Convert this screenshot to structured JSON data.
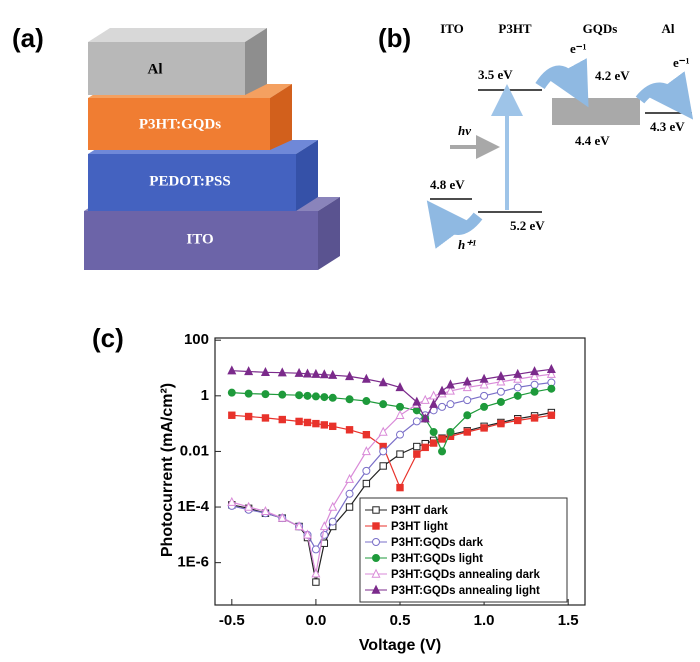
{
  "panel_a": {
    "label": "(a)",
    "layers": [
      "Al",
      "P3HT:GQDs",
      "PEDOT:PSS",
      "ITO"
    ]
  },
  "panel_b": {
    "label": "(b)",
    "materials": [
      "ITO",
      "P3HT",
      "GQDs",
      "Al"
    ],
    "levels": {
      "ito": "4.8 eV",
      "p3ht_lumo": "3.5 eV",
      "p3ht_homo": "5.2 eV",
      "gqds_lumo": "4.2 eV",
      "gqds_homo": "4.4 eV",
      "al": "4.3 eV"
    },
    "photon": "hν",
    "electron": "e⁻¹",
    "hole": "h⁺¹"
  },
  "chart_data": {
    "type": "line",
    "label": "(c)",
    "xlabel": "Voltage (V)",
    "ylabel": "Photocurrent (mA/cm²)",
    "yscale": "log",
    "legend": "lower right",
    "xlim": [
      -0.6,
      1.6
    ],
    "xticks": [
      -0.5,
      {
        "value": 0,
        "label": "0.0"
      },
      0.5,
      {
        "value": 1,
        "label": "1.0"
      },
      1.5
    ],
    "ylim": [
      3e-08,
      120
    ],
    "yticks": [
      100,
      1,
      0.01,
      {
        "value": 0.0001,
        "label": "1E-4"
      },
      {
        "value": 1e-06,
        "label": "1E-6"
      }
    ],
    "x": [
      -0.5,
      -0.4,
      -0.3,
      -0.2,
      -0.1,
      -0.05,
      0,
      0.05,
      0.1,
      0.2,
      0.3,
      0.4,
      0.5,
      0.6,
      0.65,
      0.7,
      0.75,
      0.8,
      0.9,
      1.0,
      1.1,
      1.2,
      1.3,
      1.4
    ],
    "series": [
      {
        "name": "P3HT dark",
        "color": "#222222",
        "marker": "square",
        "filled": false,
        "values": [
          0.00012,
          9e-05,
          6e-05,
          4e-05,
          2e-05,
          8e-06,
          2e-07,
          5e-06,
          2e-05,
          0.0001,
          0.0007,
          0.003,
          0.008,
          0.015,
          0.019,
          0.025,
          0.03,
          0.04,
          0.055,
          0.08,
          0.11,
          0.15,
          0.19,
          0.25
        ]
      },
      {
        "name": "P3HT light",
        "color": "#e8322b",
        "marker": "square",
        "filled": true,
        "values": [
          0.2,
          0.18,
          0.16,
          0.14,
          0.12,
          0.11,
          0.1,
          0.09,
          0.08,
          0.06,
          0.04,
          0.015,
          0.0005,
          0.008,
          0.014,
          0.02,
          0.028,
          0.035,
          0.05,
          0.07,
          0.1,
          0.13,
          0.16,
          0.2
        ]
      },
      {
        "name": "P3HT:GQDs dark",
        "color": "#7a6fc8",
        "marker": "circle",
        "filled": false,
        "values": [
          0.00011,
          8e-05,
          6e-05,
          4e-05,
          2e-05,
          1e-05,
          3e-06,
          1e-05,
          3e-05,
          0.0003,
          0.002,
          0.01,
          0.04,
          0.12,
          0.2,
          0.3,
          0.4,
          0.5,
          0.7,
          1.0,
          1.4,
          2,
          2.5,
          3
        ]
      },
      {
        "name": "P3HT:GQDs light",
        "color": "#1e9a3b",
        "marker": "circle",
        "filled": true,
        "values": [
          1.3,
          1.2,
          1.15,
          1.1,
          1.05,
          1.0,
          0.95,
          0.9,
          0.85,
          0.75,
          0.65,
          0.5,
          0.4,
          0.3,
          0.15,
          0.05,
          0.01,
          0.05,
          0.2,
          0.4,
          0.6,
          1.0,
          1.4,
          1.8
        ]
      },
      {
        "name": "P3HT:GQDs annealing dark",
        "color": "#d98ad8",
        "marker": "triangle",
        "filled": false,
        "values": [
          0.00015,
          0.0001,
          7e-05,
          4e-05,
          2e-05,
          1e-05,
          4e-07,
          2e-05,
          0.0001,
          0.001,
          0.01,
          0.05,
          0.2,
          0.5,
          0.7,
          1,
          1.2,
          1.5,
          2,
          2.5,
          3.2,
          4,
          5,
          6
        ]
      },
      {
        "name": "P3HT:GQDs annealing light",
        "color": "#7b2a8b",
        "marker": "triangle",
        "filled": true,
        "values": [
          8,
          7.5,
          7,
          6.8,
          6.5,
          6.2,
          6,
          5.8,
          5.5,
          5,
          4,
          3,
          2,
          0.6,
          0.15,
          0.5,
          1.5,
          2.5,
          3.2,
          4,
          5,
          6,
          7.5,
          9
        ]
      }
    ]
  }
}
